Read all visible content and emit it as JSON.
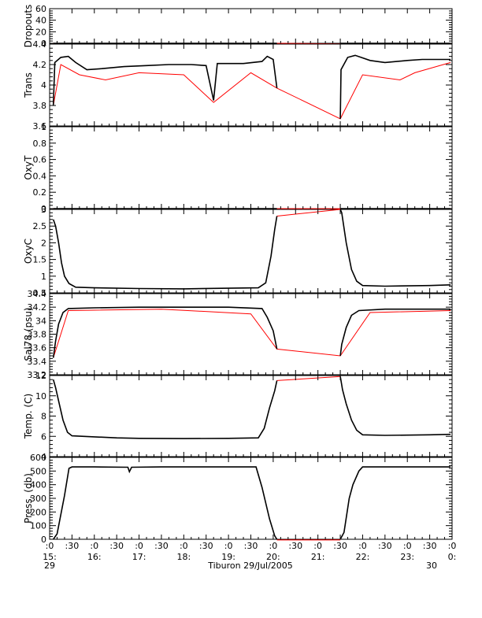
{
  "chart_data": {
    "type": "line",
    "x_time_axis": {
      "ticks": [
        {
          "t": "2005-07-29T15:00",
          "top": ":0",
          "bottom": "15:"
        },
        {
          "t": "2005-07-29T15:30",
          "top": ":30",
          "bottom": ""
        },
        {
          "t": "2005-07-29T16:00",
          "top": ":0",
          "bottom": "16:"
        },
        {
          "t": "2005-07-29T16:30",
          "top": ":30",
          "bottom": ""
        },
        {
          "t": "2005-07-29T17:00",
          "top": ":0",
          "bottom": "17:"
        },
        {
          "t": "2005-07-29T17:30",
          "top": ":30",
          "bottom": ""
        },
        {
          "t": "2005-07-29T18:00",
          "top": ":0",
          "bottom": "18:"
        },
        {
          "t": "2005-07-29T18:30",
          "top": ":30",
          "bottom": ""
        },
        {
          "t": "2005-07-29T19:00",
          "top": ":0",
          "bottom": "19:"
        },
        {
          "t": "2005-07-29T19:30",
          "top": ":30",
          "bottom": ""
        },
        {
          "t": "2005-07-29T20:00",
          "top": ":0",
          "bottom": "20:"
        },
        {
          "t": "2005-07-29T20:30",
          "top": ":30",
          "bottom": ""
        },
        {
          "t": "2005-07-29T21:00",
          "top": ":0",
          "bottom": "21:"
        },
        {
          "t": "2005-07-29T21:30",
          "top": ":30",
          "bottom": ""
        },
        {
          "t": "2005-07-29T22:00",
          "top": ":0",
          "bottom": "22:"
        },
        {
          "t": "2005-07-29T22:30",
          "top": ":30",
          "bottom": ""
        },
        {
          "t": "2005-07-29T23:00",
          "top": ":0",
          "bottom": "23:"
        },
        {
          "t": "2005-07-29T23:30",
          "top": ":30",
          "bottom": ""
        },
        {
          "t": "2005-07-30T00:00",
          "top": ":0",
          "bottom": "0:"
        }
      ],
      "day_left": "29",
      "day_right": "30",
      "xlabel": "Tiburon 29/Jul/2005"
    },
    "gap": {
      "start": "2005-07-29T20:05",
      "end": "2005-07-29T21:30"
    },
    "panels": [
      {
        "ylabel": "Dropouts",
        "ylim": [
          0,
          60
        ],
        "ticks": [
          0,
          20,
          40,
          60
        ],
        "black_series": [
          [
            "15:05",
            0
          ],
          [
            "20:05",
            0
          ],
          [
            "21:30",
            0
          ],
          [
            "23:58",
            0
          ]
        ],
        "red_series": [
          [
            "15:05",
            0
          ],
          [
            "20:05",
            0
          ],
          [
            "21:30",
            -1
          ],
          [
            "23:58",
            0
          ]
        ]
      },
      {
        "ylabel": "Trans",
        "ylim": [
          3.6,
          4.4
        ],
        "ticks": [
          3.6,
          3.8,
          4.0,
          4.2,
          4.4
        ],
        "black_series": [
          [
            "15:05",
            3.8
          ],
          [
            "15:07",
            4.22
          ],
          [
            "15:15",
            4.27
          ],
          [
            "15:25",
            4.28
          ],
          [
            "15:35",
            4.22
          ],
          [
            "15:50",
            4.15
          ],
          [
            "16:10",
            4.16
          ],
          [
            "16:40",
            4.18
          ],
          [
            "17:10",
            4.19
          ],
          [
            "17:40",
            4.2
          ],
          [
            "18:10",
            4.2
          ],
          [
            "18:30",
            4.19
          ],
          [
            "18:40",
            3.85
          ],
          [
            "18:45",
            4.21
          ],
          [
            "19:20",
            4.21
          ],
          [
            "19:45",
            4.23
          ],
          [
            "19:52",
            4.28
          ],
          [
            "20:00",
            4.25
          ],
          [
            "20:05",
            3.97
          ],
          [
            "21:30",
            3.67
          ],
          [
            "21:31",
            4.15
          ],
          [
            "21:40",
            4.27
          ],
          [
            "21:50",
            4.29
          ],
          [
            "22:10",
            4.24
          ],
          [
            "22:30",
            4.22
          ],
          [
            "23:00",
            4.24
          ],
          [
            "23:20",
            4.25
          ],
          [
            "23:58",
            4.25
          ]
        ],
        "red_series": [
          [
            "15:05",
            3.8
          ],
          [
            "15:15",
            4.2
          ],
          [
            "15:40",
            4.1
          ],
          [
            "16:15",
            4.05
          ],
          [
            "17:00",
            4.12
          ],
          [
            "18:00",
            4.1
          ],
          [
            "18:40",
            3.83
          ],
          [
            "19:30",
            4.12
          ],
          [
            "20:05",
            3.97
          ],
          [
            "21:30",
            3.67
          ],
          [
            "22:00",
            4.1
          ],
          [
            "22:50",
            4.05
          ],
          [
            "23:10",
            4.12
          ],
          [
            "23:58",
            4.22
          ]
        ]
      },
      {
        "ylabel": "OxyT",
        "ylim": [
          0.0,
          1.0
        ],
        "ticks": [
          0.0,
          0.2,
          0.4,
          0.6,
          0.8,
          1.0
        ],
        "black_series": [
          [
            "15:05",
            0.0
          ],
          [
            "20:05",
            0.0
          ],
          [
            "21:30",
            0.0
          ],
          [
            "23:58",
            0.0
          ]
        ],
        "red_series": [
          [
            "15:05",
            0.0
          ],
          [
            "20:05",
            0.0
          ],
          [
            "21:30",
            0.0
          ],
          [
            "23:58",
            0.0
          ]
        ]
      },
      {
        "ylabel": "OxyC",
        "ylim": [
          0.5,
          3.0
        ],
        "ticks": [
          0.5,
          1.0,
          1.5,
          2.0,
          2.5,
          3.0
        ],
        "black_series": [
          [
            "15:05",
            2.7
          ],
          [
            "15:08",
            2.5
          ],
          [
            "15:12",
            2.0
          ],
          [
            "15:16",
            1.4
          ],
          [
            "15:20",
            1.0
          ],
          [
            "15:26",
            0.78
          ],
          [
            "15:35",
            0.67
          ],
          [
            "16:00",
            0.65
          ],
          [
            "17:00",
            0.63
          ],
          [
            "18:00",
            0.62
          ],
          [
            "19:00",
            0.64
          ],
          [
            "19:40",
            0.65
          ],
          [
            "19:50",
            0.8
          ],
          [
            "19:57",
            1.6
          ],
          [
            "20:02",
            2.4
          ],
          [
            "20:05",
            2.8
          ],
          [
            "21:30",
            3.25
          ],
          [
            "21:32",
            2.9
          ],
          [
            "21:38",
            2.0
          ],
          [
            "21:45",
            1.2
          ],
          [
            "21:52",
            0.85
          ],
          [
            "22:00",
            0.72
          ],
          [
            "22:30",
            0.7
          ],
          [
            "23:30",
            0.72
          ],
          [
            "23:58",
            0.74
          ]
        ],
        "red_series": [
          [
            "20:05",
            2.8
          ],
          [
            "21:30",
            3.25
          ]
        ]
      },
      {
        "ylabel": "Sal78 (psu)",
        "ylim": [
          33.2,
          34.4
        ],
        "ticks": [
          33.2,
          33.4,
          33.6,
          33.8,
          34.0,
          34.2,
          34.4
        ],
        "black_series": [
          [
            "15:05",
            33.45
          ],
          [
            "15:08",
            33.7
          ],
          [
            "15:12",
            33.95
          ],
          [
            "15:18",
            34.12
          ],
          [
            "15:25",
            34.18
          ],
          [
            "16:00",
            34.19
          ],
          [
            "17:00",
            34.2
          ],
          [
            "18:00",
            34.2
          ],
          [
            "19:00",
            34.2
          ],
          [
            "19:45",
            34.18
          ],
          [
            "19:52",
            34.05
          ],
          [
            "20:00",
            33.85
          ],
          [
            "20:05",
            33.58
          ],
          [
            "21:30",
            33.48
          ],
          [
            "21:32",
            33.65
          ],
          [
            "21:38",
            33.9
          ],
          [
            "21:45",
            34.08
          ],
          [
            "21:55",
            34.15
          ],
          [
            "22:30",
            34.17
          ],
          [
            "23:30",
            34.17
          ],
          [
            "23:58",
            34.17
          ]
        ],
        "red_series": [
          [
            "15:05",
            33.45
          ],
          [
            "15:25",
            34.15
          ],
          [
            "17:30",
            34.17
          ],
          [
            "19:30",
            34.1
          ],
          [
            "20:05",
            33.58
          ],
          [
            "21:30",
            33.48
          ],
          [
            "22:10",
            34.12
          ],
          [
            "23:58",
            34.15
          ]
        ]
      },
      {
        "ylabel": "Temp. (C)",
        "ylim": [
          4,
          12
        ],
        "ticks": [
          4,
          6,
          8,
          10,
          12
        ],
        "black_series": [
          [
            "15:05",
            11.6
          ],
          [
            "15:08",
            10.8
          ],
          [
            "15:12",
            9.5
          ],
          [
            "15:18",
            7.6
          ],
          [
            "15:24",
            6.4
          ],
          [
            "15:30",
            6.05
          ],
          [
            "16:00",
            5.95
          ],
          [
            "16:30",
            5.85
          ],
          [
            "17:00",
            5.8
          ],
          [
            "18:00",
            5.78
          ],
          [
            "19:00",
            5.8
          ],
          [
            "19:40",
            5.85
          ],
          [
            "19:48",
            6.8
          ],
          [
            "19:55",
            8.8
          ],
          [
            "20:02",
            10.5
          ],
          [
            "20:05",
            11.5
          ],
          [
            "21:30",
            11.9
          ],
          [
            "21:33",
            10.6
          ],
          [
            "21:38",
            9.2
          ],
          [
            "21:45",
            7.6
          ],
          [
            "21:52",
            6.6
          ],
          [
            "22:00",
            6.15
          ],
          [
            "22:30",
            6.1
          ],
          [
            "23:30",
            6.15
          ],
          [
            "23:58",
            6.2
          ]
        ],
        "red_series": [
          [
            "20:05",
            11.5
          ],
          [
            "21:30",
            11.9
          ]
        ]
      },
      {
        "ylabel": "Press. (db)",
        "ylim": [
          0,
          600
        ],
        "ticks": [
          0,
          100,
          200,
          300,
          400,
          500,
          600
        ],
        "black_series": [
          [
            "15:05",
            0
          ],
          [
            "15:10",
            40
          ],
          [
            "15:20",
            320
          ],
          [
            "15:26",
            520
          ],
          [
            "15:30",
            530
          ],
          [
            "16:00",
            530
          ],
          [
            "16:45",
            528
          ],
          [
            "16:47",
            495
          ],
          [
            "16:50",
            528
          ],
          [
            "17:30",
            530
          ],
          [
            "18:30",
            530
          ],
          [
            "19:00",
            530
          ],
          [
            "19:37",
            530
          ],
          [
            "19:45",
            380
          ],
          [
            "19:55",
            150
          ],
          [
            "20:02",
            25
          ],
          [
            "20:05",
            0
          ],
          [
            "21:30",
            0
          ],
          [
            "21:35",
            50
          ],
          [
            "21:42",
            300
          ],
          [
            "21:47",
            400
          ],
          [
            "21:55",
            500
          ],
          [
            "22:00",
            530
          ],
          [
            "22:30",
            530
          ],
          [
            "23:30",
            530
          ],
          [
            "23:58",
            530
          ]
        ],
        "red_series": [
          [
            "20:05",
            -5
          ],
          [
            "21:30",
            -5
          ]
        ]
      }
    ]
  }
}
